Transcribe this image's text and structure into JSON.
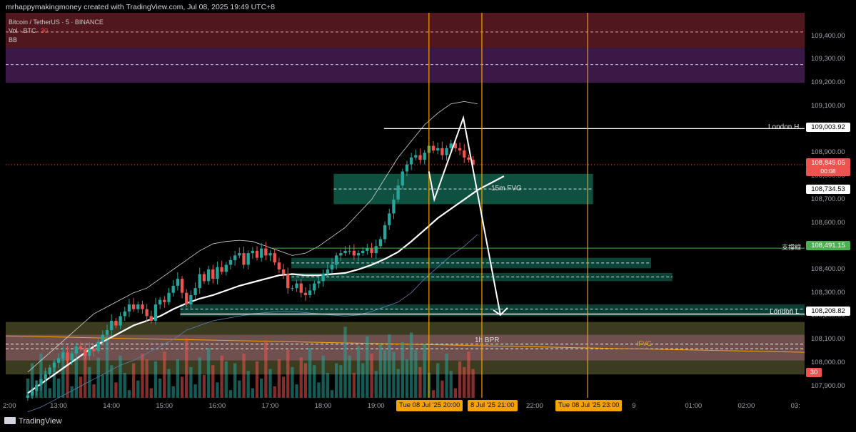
{
  "header": {
    "attribution": "mrhappymakingmoney created with TradingView.com, Jul 08, 2025 19:49 UTC+8"
  },
  "legend": {
    "symbol": "Bitcoin / TetherUS · 5 · BINANCE",
    "volume": "Vol · BTC",
    "volume_value": "30",
    "indicator": "BB"
  },
  "colors": {
    "up": "#26a69a",
    "down": "#ef5350",
    "ma": "#ffffff",
    "fvg": "#0f5a48",
    "orange": "#f5a300",
    "green_line": "#4caf50"
  },
  "annotations": {
    "london_high": "London H",
    "london_low": "London L",
    "fvg15": "15m FVG",
    "support": "支撐線",
    "bpr1h": "1h BPR",
    "ifvg": "IFVG"
  },
  "price_tags": {
    "london_high": "109,003.92",
    "current": "108,849.05",
    "countdown": "00:08",
    "fvg15": "108,734.53",
    "support": "108,491.15",
    "london_low": "108,208.82",
    "volume": "30"
  },
  "time_tags": {
    "t1": "Tue 08 Jul '25   20:00",
    "t2": "8 Jul '25   21:00",
    "t3": "Tue 08 Jul '25   23:00"
  },
  "footer": {
    "brand": "TradingView"
  },
  "chart_data": {
    "type": "candlestick",
    "title": "Bitcoin / TetherUS · 5 · BINANCE",
    "y_ticks": [
      109400,
      109300,
      109200,
      109100,
      109000,
      108900,
      108800,
      108700,
      108600,
      108500,
      108400,
      108300,
      108200,
      108100,
      108000,
      107900
    ],
    "y_tick_labels": [
      "109,400.00",
      "109,300.00",
      "109,200.00",
      "109,100.00",
      "109,000.00",
      "108,900.00",
      "108,800.00",
      "108,700.00",
      "108,600.00",
      "108,500.00",
      "108,400.00",
      "108,300.00",
      "108,200.00",
      "108,100.00",
      "108,000.00",
      "107,900.00"
    ],
    "x_ticks": [
      "2:00",
      "13:00",
      "14:00",
      "15:00",
      "16:00",
      "17:00",
      "18:00",
      "19:00",
      "22:00",
      "9",
      "01:00",
      "02:00",
      "03:"
    ],
    "x_tick_hours": [
      12,
      13,
      14,
      15,
      16,
      17,
      18,
      19,
      22,
      24,
      25,
      26,
      27
    ],
    "ylim": [
      107850,
      109500
    ],
    "xlim": [
      12.0,
      27.1
    ],
    "candle_start_hour": 12.417,
    "candle_step_hours": 0.08333,
    "closes": [
      107860,
      107880,
      107905,
      107930,
      107950,
      107980,
      108000,
      108020,
      108045,
      108010,
      108040,
      108070,
      108060,
      108030,
      108060,
      108050,
      108090,
      108120,
      108140,
      108180,
      108160,
      108200,
      108220,
      108250,
      108230,
      108250,
      108230,
      108200,
      108180,
      108250,
      108270,
      108260,
      108300,
      108330,
      108360,
      108300,
      108250,
      108290,
      108320,
      108380,
      108350,
      108400,
      108360,
      108410,
      108390,
      108420,
      108440,
      108460,
      108470,
      108420,
      108470,
      108480,
      108450,
      108490,
      108460,
      108470,
      108430,
      108400,
      108380,
      108320,
      108320,
      108340,
      108300,
      108290,
      108310,
      108340,
      108350,
      108380,
      108400,
      108420,
      108460,
      108470,
      108480,
      108480,
      108460,
      108470,
      108480,
      108490,
      108470,
      108500,
      108530,
      108590,
      108640,
      108700,
      108760,
      108820,
      108850,
      108880,
      108890,
      108870,
      108900,
      108930,
      108910,
      108920,
      108890,
      108920,
      108940,
      108920,
      108910,
      108880,
      108870,
      108849.05
    ],
    "bb_mid": [
      107870,
      107910,
      107950,
      107990,
      108030,
      108070,
      108100,
      108130,
      108160,
      108180,
      108200,
      108230,
      108255,
      108275,
      108290,
      108310,
      108330,
      108345,
      108360,
      108375,
      108380,
      108375,
      108375,
      108380,
      108385,
      108400,
      108420,
      108445,
      108475,
      108520,
      108570,
      108620,
      108660,
      108700,
      108740,
      108770,
      108800
    ],
    "bb_upper": [
      107960,
      108010,
      108060,
      108110,
      108160,
      108210,
      108240,
      108270,
      108300,
      108320,
      108360,
      108400,
      108440,
      108480,
      108510,
      108520,
      108525,
      108520,
      108500,
      108480,
      108460,
      108470,
      108500,
      108540,
      108580,
      108640,
      108700,
      108790,
      108880,
      108950,
      109020,
      109070,
      109110,
      109120,
      109110
    ],
    "bb_lower": [
      107790,
      107810,
      107840,
      107870,
      107900,
      107930,
      107960,
      107990,
      108010,
      108040,
      108070,
      108100,
      108140,
      108160,
      108180,
      108190,
      108200,
      108210,
      108215,
      108220,
      108220,
      108215,
      108210,
      108205,
      108200,
      108205,
      108220,
      108240,
      108260,
      108300,
      108360,
      108410,
      108460,
      108500,
      108550
    ],
    "volume_max": 30
  }
}
